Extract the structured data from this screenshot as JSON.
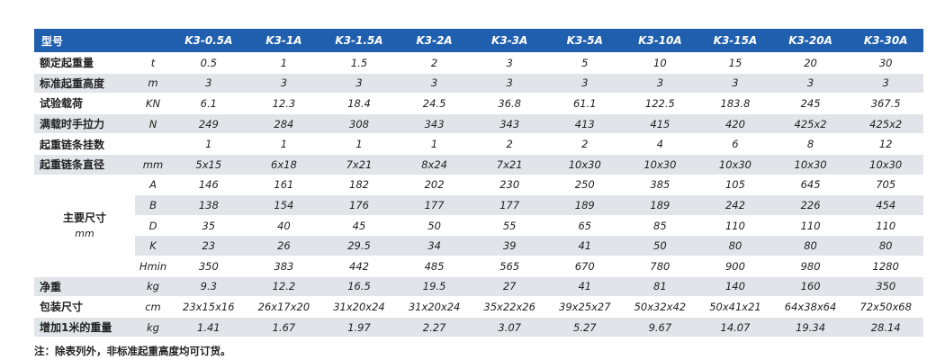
{
  "table": {
    "header_label": "型号",
    "models": [
      "K3-0.5A",
      "K3-1A",
      "K3-1.5A",
      "K3-2A",
      "K3-3A",
      "K3-5A",
      "K3-10A",
      "K3-15A",
      "K3-20A",
      "K3-30A"
    ],
    "rows": [
      {
        "label": "额定起重量",
        "unit": "t",
        "values": [
          "0.5",
          "1",
          "1.5",
          "2",
          "3",
          "5",
          "10",
          "15",
          "20",
          "30"
        ]
      },
      {
        "label": "标准起重高度",
        "unit": "m",
        "values": [
          "3",
          "3",
          "3",
          "3",
          "3",
          "3",
          "3",
          "3",
          "3",
          "3"
        ]
      },
      {
        "label": "试验载荷",
        "unit": "KN",
        "values": [
          "6.1",
          "12.3",
          "18.4",
          "24.5",
          "36.8",
          "61.1",
          "122.5",
          "183.8",
          "245",
          "367.5"
        ]
      },
      {
        "label": "满载时手拉力",
        "unit": "N",
        "values": [
          "249",
          "284",
          "308",
          "343",
          "343",
          "413",
          "415",
          "420",
          "425x2",
          "425x2"
        ]
      },
      {
        "label": "起重链条挂数",
        "unit": "",
        "values": [
          "1",
          "1",
          "1",
          "1",
          "2",
          "2",
          "4",
          "6",
          "8",
          "12"
        ]
      },
      {
        "label": "起重链条直径",
        "unit": "mm",
        "values": [
          "5x15",
          "6x18",
          "7x21",
          "8x24",
          "7x21",
          "10x30",
          "10x30",
          "10x30",
          "10x30",
          "10x30"
        ]
      }
    ],
    "dimensions": {
      "label": "主要尺寸",
      "unit": "mm",
      "rows": [
        {
          "unit": "A",
          "values": [
            "146",
            "161",
            "182",
            "202",
            "230",
            "250",
            "385",
            "105",
            "645",
            "705"
          ]
        },
        {
          "unit": "B",
          "values": [
            "138",
            "154",
            "176",
            "177",
            "177",
            "189",
            "189",
            "242",
            "226",
            "454"
          ]
        },
        {
          "unit": "D",
          "values": [
            "35",
            "40",
            "45",
            "50",
            "55",
            "65",
            "85",
            "110",
            "110",
            "110"
          ]
        },
        {
          "unit": "K",
          "values": [
            "23",
            "26",
            "29.5",
            "34",
            "39",
            "41",
            "50",
            "80",
            "80",
            "80"
          ]
        },
        {
          "unit": "Hmin",
          "values": [
            "350",
            "383",
            "442",
            "485",
            "565",
            "670",
            "780",
            "900",
            "980",
            "1280"
          ]
        }
      ]
    },
    "tail_rows": [
      {
        "label": "净重",
        "unit": "kg",
        "values": [
          "9.3",
          "12.2",
          "16.5",
          "19.5",
          "27",
          "41",
          "81",
          "140",
          "160",
          "350"
        ]
      },
      {
        "label": "包装尺寸",
        "unit": "cm",
        "values": [
          "23x15x16",
          "26x17x20",
          "31x20x24",
          "31x20x24",
          "35x22x26",
          "39x25x27",
          "50x32x42",
          "50x41x21",
          "64x38x64",
          "72x50x68"
        ]
      },
      {
        "label": "增加1米的重量",
        "unit": "kg",
        "values": [
          "1.41",
          "1.67",
          "1.97",
          "2.27",
          "3.07",
          "5.27",
          "9.67",
          "14.07",
          "19.34",
          "28.14"
        ]
      }
    ]
  },
  "note": "注：除表列外，非标准起重高度均可订货。"
}
